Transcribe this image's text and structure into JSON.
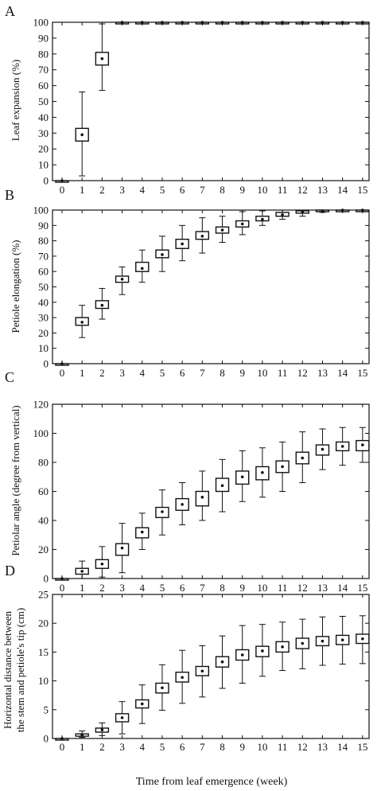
{
  "xlabel": "Time from leaf emergence (week)",
  "weeks": [
    0,
    1,
    2,
    3,
    4,
    5,
    6,
    7,
    8,
    9,
    10,
    11,
    12,
    13,
    14,
    15
  ],
  "chart_data": [
    {
      "panel": "A",
      "type": "box",
      "ylabel": "Leaf expansion (%)",
      "ylim": [
        0,
        100
      ],
      "yticks": [
        0,
        10,
        20,
        30,
        40,
        50,
        60,
        70,
        80,
        90,
        100
      ],
      "x": [
        0,
        1,
        2,
        3,
        4,
        5,
        6,
        7,
        8,
        9,
        10,
        11,
        12,
        13,
        14,
        15
      ],
      "median": [
        0,
        29,
        77,
        100,
        100,
        100,
        100,
        100,
        100,
        100,
        100,
        100,
        100,
        100,
        100,
        100
      ],
      "q1": [
        0,
        25,
        73,
        99.5,
        99.8,
        100,
        100,
        100,
        100,
        100,
        100,
        100,
        100,
        100,
        100,
        100
      ],
      "q3": [
        0,
        33,
        81,
        100,
        100,
        100,
        100,
        100,
        100,
        100,
        100,
        100,
        100,
        100,
        100,
        100
      ],
      "min": [
        0,
        3,
        57,
        99,
        99.5,
        100,
        100,
        100,
        100,
        100,
        100,
        100,
        100,
        100,
        100,
        100
      ],
      "max": [
        0,
        56,
        99,
        100,
        100,
        100,
        100,
        100,
        100,
        100,
        100,
        100,
        100,
        100,
        100,
        100
      ]
    },
    {
      "panel": "B",
      "type": "box",
      "ylabel": "Petiole elongation (%)",
      "ylim": [
        0,
        100
      ],
      "yticks": [
        0,
        10,
        20,
        30,
        40,
        50,
        60,
        70,
        80,
        90,
        100
      ],
      "x": [
        0,
        1,
        2,
        3,
        4,
        5,
        6,
        7,
        8,
        9,
        10,
        11,
        12,
        13,
        14,
        15
      ],
      "median": [
        0,
        27,
        38,
        55,
        62,
        71,
        78,
        83,
        87,
        91,
        94,
        97,
        98.5,
        99.5,
        100,
        100
      ],
      "q1": [
        0,
        25,
        36,
        53,
        60,
        69,
        75,
        81,
        85,
        89,
        93,
        96,
        98,
        99,
        100,
        100
      ],
      "q3": [
        0,
        30,
        41,
        57,
        66,
        74,
        81,
        86,
        89,
        93,
        96,
        98.5,
        99.5,
        100,
        100,
        100
      ],
      "min": [
        0,
        17,
        29,
        45,
        53,
        60,
        67,
        72,
        79,
        84,
        90,
        94,
        96,
        98.5,
        99.5,
        100
      ],
      "max": [
        0,
        38,
        49,
        63,
        74,
        83,
        90,
        95,
        96,
        99,
        99.5,
        100,
        100,
        100,
        100,
        100
      ]
    },
    {
      "panel": "C",
      "type": "box",
      "ylabel": "Petiolar angle (degree from vertical)",
      "ylim": [
        0,
        120
      ],
      "yticks": [
        0,
        20,
        40,
        60,
        80,
        100,
        120
      ],
      "x": [
        0,
        1,
        2,
        3,
        4,
        5,
        6,
        7,
        8,
        9,
        10,
        11,
        12,
        13,
        14,
        15
      ],
      "median": [
        0,
        5,
        10,
        21,
        32,
        46,
        51,
        56,
        64,
        70,
        73,
        77,
        83,
        89,
        91,
        92
      ],
      "q1": [
        0,
        3,
        7,
        16,
        28,
        42,
        47,
        50,
        60,
        65,
        68,
        73,
        79,
        85,
        88,
        88
      ],
      "q3": [
        0,
        7,
        13,
        24,
        35,
        49,
        55,
        60,
        69,
        74,
        77,
        81,
        87,
        92,
        94,
        95
      ],
      "min": [
        0,
        0,
        1,
        4,
        20,
        30,
        37,
        40,
        46,
        53,
        56,
        60,
        66,
        75,
        78,
        80
      ],
      "max": [
        0,
        12,
        22,
        38,
        45,
        61,
        66,
        74,
        82,
        88,
        90,
        94,
        101,
        103,
        104,
        104
      ]
    },
    {
      "panel": "D",
      "type": "box",
      "ylabel_line1": "Horizontal distance between",
      "ylabel_line2": "the stem and petiole's tip (cm)",
      "ylim": [
        0,
        25
      ],
      "yticks": [
        0,
        5,
        10,
        15,
        20,
        25
      ],
      "x": [
        0,
        1,
        2,
        3,
        4,
        5,
        6,
        7,
        8,
        9,
        10,
        11,
        12,
        13,
        14,
        15
      ],
      "median": [
        0,
        0.6,
        1.5,
        3.6,
        6,
        8.8,
        10.6,
        11.7,
        13.3,
        14.5,
        15.2,
        15.9,
        16.5,
        16.9,
        17.1,
        17.3
      ],
      "q1": [
        0,
        0.4,
        1.1,
        2.9,
        5.3,
        7.9,
        9.8,
        10.9,
        12.4,
        13.6,
        14.2,
        15.0,
        15.6,
        16.1,
        16.3,
        16.5
      ],
      "q3": [
        0,
        0.8,
        1.8,
        4.3,
        6.7,
        9.6,
        11.5,
        12.5,
        14.2,
        15.4,
        16.0,
        16.8,
        17.4,
        17.7,
        17.9,
        18.1
      ],
      "min": [
        0,
        0.2,
        0.5,
        0.8,
        2.6,
        4.9,
        6.1,
        7.2,
        8.7,
        9.6,
        10.8,
        11.8,
        12.1,
        12.7,
        12.9,
        13.0
      ],
      "max": [
        0,
        1.3,
        2.7,
        6.4,
        9.3,
        12.8,
        15.3,
        16.1,
        17.8,
        19.6,
        19.8,
        20.2,
        20.7,
        21.1,
        21.2,
        21.3
      ]
    }
  ],
  "labels": {
    "a": "A",
    "b": "B",
    "c": "C",
    "d": "D"
  }
}
